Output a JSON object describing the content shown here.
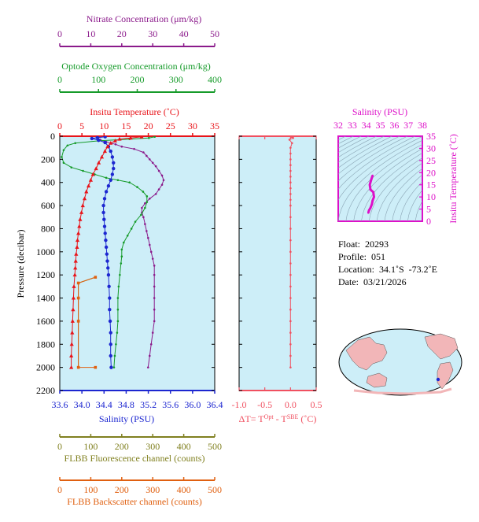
{
  "colors": {
    "nitrate": "#8b1a8b",
    "oxygen": "#169b2a",
    "temperature": "#e8141a",
    "salinity": "#1c26d0",
    "delta": "#f05060",
    "fluorescence": "#808020",
    "backscatter": "#e06010",
    "ts_axis": "#dd10c8",
    "plot_bg": "#cdeef8"
  },
  "axes": {
    "nitrate": {
      "label": "Nitrate Concentration (μm/kg)",
      "ticks": [
        "0",
        "10",
        "20",
        "30",
        "40",
        "50"
      ],
      "range": [
        0,
        50
      ]
    },
    "oxygen": {
      "label": "Optode Oxygen Concentration (μm/kg)",
      "ticks": [
        "0",
        "100",
        "200",
        "300",
        "400"
      ],
      "range": [
        0,
        400
      ]
    },
    "temperature": {
      "label": "Insitu Temperature (˚C)",
      "ticks": [
        "0",
        "5",
        "10",
        "15",
        "20",
        "25",
        "30",
        "35"
      ],
      "range": [
        0,
        35
      ]
    },
    "pressure": {
      "label": "Pressure (decibar)",
      "ticks": [
        "0",
        "200",
        "400",
        "600",
        "800",
        "1000",
        "1200",
        "1400",
        "1600",
        "1800",
        "2000",
        "2200"
      ],
      "range": [
        0,
        2200
      ]
    },
    "salinity": {
      "label": "Salinity (PSU)",
      "ticks": [
        "33.6",
        "34.0",
        "34.4",
        "34.8",
        "35.2",
        "35.6",
        "36.0",
        "36.4"
      ],
      "range": [
        33.6,
        36.4
      ]
    },
    "delta": {
      "label_prefix": "ΔT= T",
      "label_sup1": "Opt",
      "label_mid": " - T",
      "label_sup2": "SBE",
      "label_suffix": " (˚C)",
      "ticks": [
        "-1.0",
        "-0.5",
        "0.0",
        "0.5"
      ],
      "range": [
        -1.0,
        0.5
      ]
    },
    "fluorescence": {
      "label": "FLBB Fluorescence channel (counts)",
      "ticks": [
        "0",
        "100",
        "200",
        "300",
        "400",
        "500"
      ],
      "range": [
        0,
        500
      ]
    },
    "backscatter": {
      "label": "FLBB Backscatter channel (counts)",
      "ticks": [
        "0",
        "100",
        "200",
        "300",
        "400",
        "500"
      ],
      "range": [
        0,
        500
      ]
    },
    "ts_salinity": {
      "label": "Salinity (PSU)",
      "ticks": [
        "32",
        "33",
        "34",
        "35",
        "36",
        "37",
        "38"
      ],
      "range": [
        32,
        38
      ]
    },
    "ts_temperature": {
      "label": "Insitu Temperature (˚C)",
      "ticks": [
        "0",
        "5",
        "10",
        "15",
        "20",
        "25",
        "30",
        "35"
      ],
      "range": [
        0,
        35
      ]
    }
  },
  "info": {
    "float": "Float:  20293",
    "profile": "Profile:  051",
    "location": "Location:  34.1˚S  -73.2˚E",
    "date": "Date:  03/21/2026"
  },
  "chart_data": [
    {
      "type": "line",
      "name": "Nitrate",
      "x_unit": "μm/kg",
      "y_unit": "decibar",
      "points": [
        [
          12,
          10
        ],
        [
          13,
          30
        ],
        [
          15,
          50
        ],
        [
          18,
          70
        ],
        [
          20,
          90
        ],
        [
          24,
          110
        ],
        [
          27,
          140
        ],
        [
          28,
          170
        ],
        [
          29,
          200
        ],
        [
          30,
          230
        ],
        [
          31,
          260
        ],
        [
          32,
          300
        ],
        [
          33,
          340
        ],
        [
          33.5,
          380
        ],
        [
          33,
          420
        ],
        [
          32,
          460
        ],
        [
          31,
          500
        ],
        [
          29,
          540
        ],
        [
          27.5,
          580
        ],
        [
          26.5,
          620
        ],
        [
          26.5,
          660
        ],
        [
          27,
          700
        ],
        [
          27.5,
          760
        ],
        [
          28,
          820
        ],
        [
          28.5,
          880
        ],
        [
          29,
          940
        ],
        [
          29.5,
          1000
        ],
        [
          30,
          1060
        ],
        [
          30.5,
          1120
        ],
        [
          30.5,
          1200
        ],
        [
          30.5,
          1300
        ],
        [
          30.5,
          1400
        ],
        [
          30.5,
          1500
        ],
        [
          30.5,
          1600
        ],
        [
          30,
          1700
        ],
        [
          29.5,
          1800
        ],
        [
          29,
          1900
        ],
        [
          28.5,
          2000
        ]
      ]
    },
    {
      "type": "line",
      "name": "Optode Oxygen",
      "x_unit": "μm/kg",
      "y_unit": "decibar",
      "points": [
        [
          245,
          5
        ],
        [
          230,
          15
        ],
        [
          180,
          25
        ],
        [
          100,
          40
        ],
        [
          40,
          60
        ],
        [
          20,
          80
        ],
        [
          10,
          120
        ],
        [
          5,
          180
        ],
        [
          10,
          230
        ],
        [
          30,
          270
        ],
        [
          60,
          300
        ],
        [
          90,
          330
        ],
        [
          120,
          360
        ],
        [
          150,
          380
        ],
        [
          180,
          400
        ],
        [
          200,
          440
        ],
        [
          215,
          480
        ],
        [
          225,
          520
        ],
        [
          225,
          570
        ],
        [
          220,
          620
        ],
        [
          210,
          680
        ],
        [
          195,
          740
        ],
        [
          185,
          800
        ],
        [
          175,
          860
        ],
        [
          165,
          920
        ],
        [
          160,
          980
        ],
        [
          160,
          1040
        ],
        [
          158,
          1100
        ],
        [
          155,
          1200
        ],
        [
          152,
          1300
        ],
        [
          150,
          1400
        ],
        [
          150,
          1500
        ],
        [
          150,
          1600
        ],
        [
          148,
          1700
        ],
        [
          145,
          1800
        ],
        [
          142,
          1900
        ],
        [
          140,
          2000
        ]
      ]
    },
    {
      "type": "line",
      "name": "Insitu Temperature",
      "x_unit": "˚C",
      "y_unit": "decibar",
      "points": [
        [
          18.5,
          5
        ],
        [
          16,
          15
        ],
        [
          13.5,
          25
        ],
        [
          12.5,
          40
        ],
        [
          11.5,
          60
        ],
        [
          10.8,
          90
        ],
        [
          10.2,
          130
        ],
        [
          9.5,
          180
        ],
        [
          8.8,
          230
        ],
        [
          8.2,
          280
        ],
        [
          7.5,
          330
        ],
        [
          7,
          380
        ],
        [
          6.5,
          430
        ],
        [
          6,
          480
        ],
        [
          5.6,
          540
        ],
        [
          5.2,
          600
        ],
        [
          4.9,
          660
        ],
        [
          4.6,
          720
        ],
        [
          4.4,
          780
        ],
        [
          4.2,
          840
        ],
        [
          4,
          900
        ],
        [
          3.9,
          960
        ],
        [
          3.7,
          1020
        ],
        [
          3.6,
          1080
        ],
        [
          3.5,
          1140
        ],
        [
          3.4,
          1200
        ],
        [
          3.2,
          1300
        ],
        [
          3.1,
          1400
        ],
        [
          3,
          1500
        ],
        [
          2.9,
          1600
        ],
        [
          2.8,
          1700
        ],
        [
          2.7,
          1800
        ],
        [
          2.6,
          1900
        ],
        [
          2.6,
          2000
        ]
      ]
    },
    {
      "type": "line",
      "name": "Salinity",
      "x_unit": "PSU",
      "y_unit": "decibar",
      "points": [
        [
          34.42,
          5
        ],
        [
          34.28,
          12
        ],
        [
          34.18,
          20
        ],
        [
          34.3,
          35
        ],
        [
          34.42,
          55
        ],
        [
          34.48,
          90
        ],
        [
          34.52,
          130
        ],
        [
          34.55,
          180
        ],
        [
          34.57,
          230
        ],
        [
          34.57,
          280
        ],
        [
          34.55,
          330
        ],
        [
          34.52,
          380
        ],
        [
          34.48,
          430
        ],
        [
          34.44,
          480
        ],
        [
          34.41,
          540
        ],
        [
          34.39,
          600
        ],
        [
          34.39,
          660
        ],
        [
          34.4,
          720
        ],
        [
          34.41,
          780
        ],
        [
          34.42,
          840
        ],
        [
          34.43,
          900
        ],
        [
          34.44,
          960
        ],
        [
          34.45,
          1020
        ],
        [
          34.46,
          1080
        ],
        [
          34.47,
          1140
        ],
        [
          34.48,
          1200
        ],
        [
          34.49,
          1300
        ],
        [
          34.5,
          1400
        ],
        [
          34.5,
          1500
        ],
        [
          34.51,
          1600
        ],
        [
          34.52,
          1700
        ],
        [
          34.52,
          1800
        ],
        [
          34.52,
          1900
        ],
        [
          34.53,
          2000
        ]
      ]
    },
    {
      "type": "line",
      "name": "ΔT",
      "x_unit": "˚C",
      "y_unit": "decibar",
      "points": [
        [
          0.02,
          5
        ],
        [
          0.05,
          15
        ],
        [
          -0.02,
          30
        ],
        [
          0.03,
          60
        ],
        [
          0.0,
          100
        ],
        [
          0.0,
          150
        ],
        [
          0.0,
          200
        ],
        [
          0.0,
          250
        ],
        [
          0.0,
          300
        ],
        [
          0.0,
          350
        ],
        [
          0.0,
          400
        ],
        [
          0.0,
          450
        ],
        [
          0.0,
          500
        ],
        [
          0.0,
          550
        ],
        [
          0.0,
          600
        ],
        [
          0.0,
          700
        ],
        [
          0.0,
          800
        ],
        [
          0.0,
          900
        ],
        [
          0.0,
          1000
        ],
        [
          0.0,
          1100
        ],
        [
          0.0,
          1200
        ],
        [
          0.0,
          1300
        ],
        [
          0.0,
          1400
        ],
        [
          0.0,
          1500
        ],
        [
          0.0,
          1600
        ],
        [
          0.0,
          1700
        ],
        [
          0.0,
          1800
        ],
        [
          0.0,
          1900
        ],
        [
          0.0,
          2000
        ]
      ]
    },
    {
      "type": "line",
      "name": "FLBB Fluorescence",
      "x_unit": "counts",
      "y_unit": "decibar",
      "points": [
        [
          115,
          1220
        ],
        [
          60,
          1270
        ],
        [
          60,
          1600
        ],
        [
          60,
          1900
        ],
        [
          60,
          2000
        ]
      ]
    },
    {
      "type": "line",
      "name": "FLBB Backscatter",
      "x_unit": "counts",
      "y_unit": "decibar",
      "points": [
        [
          115,
          1220
        ],
        [
          60,
          1270
        ],
        [
          60,
          1400
        ],
        [
          60,
          1600
        ],
        [
          60,
          2000
        ],
        [
          115,
          2000
        ]
      ]
    },
    {
      "type": "line",
      "name": "T-S diagram",
      "x_unit": "PSU",
      "y_unit": "˚C",
      "points": [
        [
          34.45,
          18.8
        ],
        [
          34.35,
          17
        ],
        [
          34.25,
          15
        ],
        [
          34.3,
          13
        ],
        [
          34.5,
          12
        ],
        [
          34.55,
          10
        ],
        [
          34.45,
          8.5
        ],
        [
          34.4,
          7
        ],
        [
          34.3,
          5.5
        ],
        [
          34.2,
          4.5
        ],
        [
          34.15,
          3.5
        ]
      ]
    }
  ]
}
